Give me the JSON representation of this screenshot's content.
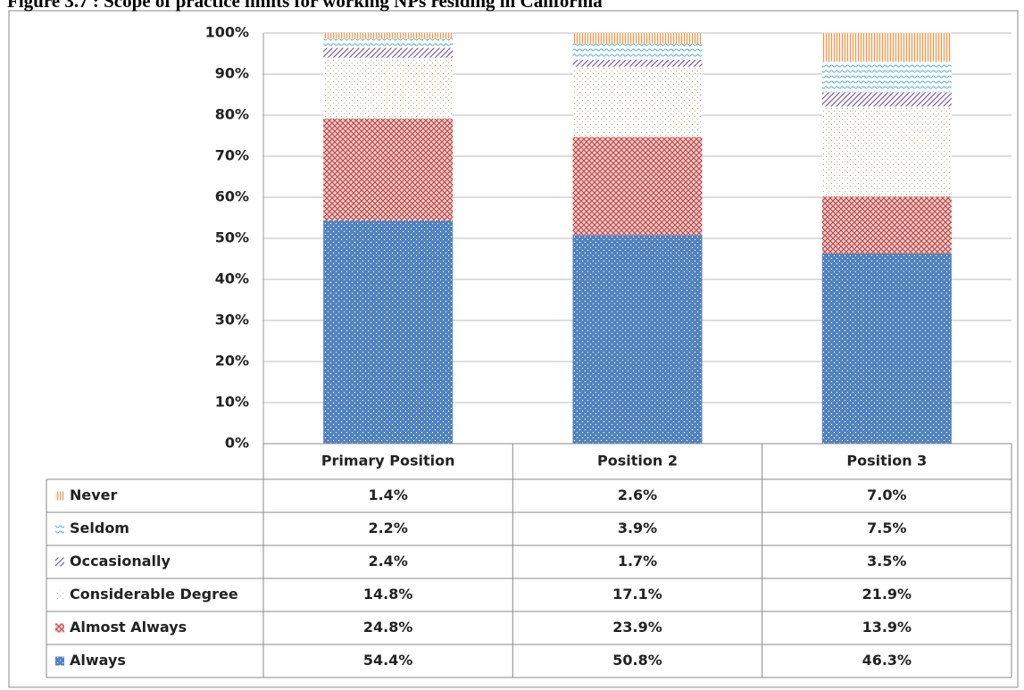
{
  "chart_data": {
    "type": "stacked_bar",
    "title": "Figure 3.7 : Scope of practice limits for working NPs residing in California",
    "categories": [
      "Primary Position",
      "Position 2",
      "Position 3"
    ],
    "series": [
      {
        "name": "Always",
        "color": "#4f81bd",
        "values": [
          54.4,
          50.8,
          46.3
        ],
        "value_labels": [
          "54.4%",
          "50.8%",
          "46.3%"
        ]
      },
      {
        "name": "Almost Always",
        "color": "#c0504d",
        "values": [
          24.8,
          23.9,
          13.9
        ],
        "value_labels": [
          "24.8%",
          "23.9%",
          "13.9%"
        ]
      },
      {
        "name": "Considerable Degree",
        "color": "#b5ad7a",
        "values": [
          14.8,
          17.1,
          21.9
        ],
        "value_labels": [
          "14.8%",
          "17.1%",
          "21.9%"
        ]
      },
      {
        "name": "Occasionally",
        "color": "#8064a2",
        "values": [
          2.4,
          1.7,
          3.5
        ],
        "value_labels": [
          "2.4%",
          "1.7%",
          "3.5%"
        ]
      },
      {
        "name": "Seldom",
        "color": "#4bacc6",
        "values": [
          2.2,
          3.9,
          7.5
        ],
        "value_labels": [
          "2.2%",
          "3.9%",
          "7.5%"
        ]
      },
      {
        "name": "Never",
        "color": "#f79646",
        "values": [
          1.4,
          2.6,
          7.0
        ],
        "value_labels": [
          "1.4%",
          "2.6%",
          "7.0%"
        ]
      }
    ],
    "ylim": [
      0,
      100
    ],
    "yticks": [
      {
        "value": 0,
        "label": "0%"
      },
      {
        "value": 10,
        "label": "10%"
      },
      {
        "value": 20,
        "label": "20%"
      },
      {
        "value": 30,
        "label": "30%"
      },
      {
        "value": 40,
        "label": "40%"
      },
      {
        "value": 50,
        "label": "50%"
      },
      {
        "value": 60,
        "label": "60%"
      },
      {
        "value": 70,
        "label": "70%"
      },
      {
        "value": 80,
        "label": "80%"
      },
      {
        "value": 90,
        "label": "90%"
      },
      {
        "value": 100,
        "label": "100%"
      }
    ],
    "grid": true
  }
}
